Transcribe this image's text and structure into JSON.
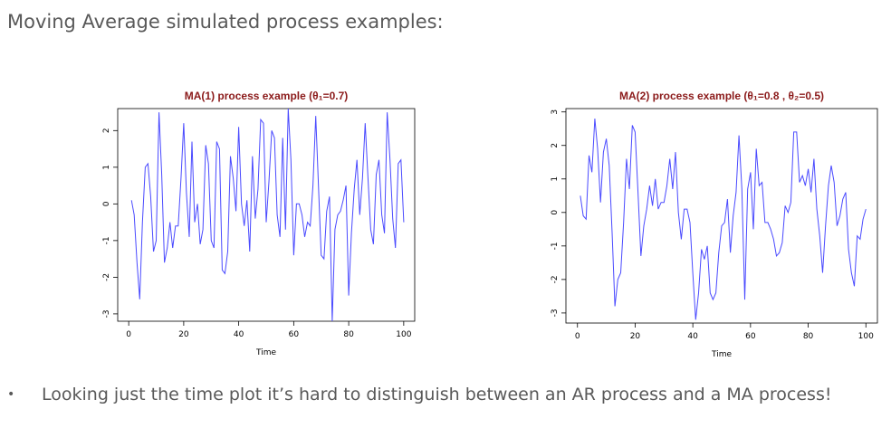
{
  "heading": "Moving Average simulated process examples:",
  "bullet": {
    "marker": "•",
    "text": "Looking just the time plot it’s hard to distinguish between an AR process and a MA process!"
  },
  "line_color": "#4a4aff",
  "title_color": "#8b1a1a",
  "chart_data": [
    {
      "type": "line",
      "title": "MA(1) process example (θ₁=0.7)",
      "xlabel": "Time",
      "ylabel": "",
      "xlim": [
        0,
        100
      ],
      "ylim": [
        -3.2,
        2.6
      ],
      "xticks": [
        0,
        20,
        40,
        60,
        80,
        100
      ],
      "yticks": [
        -3,
        -2,
        -1,
        0,
        1,
        2
      ],
      "series": [
        {
          "x": [
            1,
            2,
            3,
            4,
            5,
            6,
            7,
            8,
            9,
            10,
            11,
            12,
            13,
            14,
            15,
            16,
            17,
            18,
            19,
            20,
            21,
            22,
            23,
            24,
            25,
            26,
            27,
            28,
            29,
            30,
            31,
            32,
            33,
            34,
            35,
            36,
            37,
            38,
            39,
            40,
            41,
            42,
            43,
            44,
            45,
            46,
            47,
            48,
            49,
            50,
            51,
            52,
            53,
            54,
            55,
            56,
            57,
            58,
            59,
            60,
            61,
            62,
            63,
            64,
            65,
            66,
            67,
            68,
            69,
            70,
            71,
            72,
            73,
            74,
            75,
            76,
            77,
            78,
            79,
            80,
            81,
            82,
            83,
            84,
            85,
            86,
            87,
            88,
            89,
            90,
            91,
            92,
            93,
            94,
            95,
            96,
            97,
            98,
            99,
            100
          ],
          "y": [
            0.1,
            -0.3,
            -1.6,
            -2.6,
            -0.5,
            1.0,
            1.1,
            0.2,
            -1.3,
            -1.0,
            2.5,
            0.8,
            -1.6,
            -1.2,
            -0.5,
            -1.2,
            -0.6,
            -0.6,
            0.7,
            2.2,
            0.3,
            -0.9,
            1.7,
            -0.5,
            0.0,
            -1.1,
            -0.7,
            1.6,
            1.1,
            -1.0,
            -1.2,
            1.7,
            1.5,
            -1.8,
            -1.9,
            -1.3,
            1.3,
            0.7,
            -0.2,
            2.1,
            0.0,
            -0.6,
            0.1,
            -1.3,
            1.3,
            -0.4,
            0.4,
            2.3,
            2.2,
            -0.5,
            0.6,
            2.0,
            1.8,
            -0.3,
            -0.9,
            1.8,
            -0.7,
            2.6,
            1.2,
            -1.4,
            0.0,
            0.0,
            -0.3,
            -0.9,
            -0.5,
            -0.6,
            0.5,
            2.4,
            0.5,
            -1.4,
            -1.5,
            -0.2,
            0.2,
            -3.2,
            -0.7,
            -0.3,
            -0.2,
            0.1,
            0.5,
            -2.5,
            -0.8,
            0.4,
            1.2,
            -0.3,
            0.7,
            2.2,
            0.7,
            -0.7,
            -1.1,
            0.8,
            1.2,
            -0.3,
            -0.8,
            2.5,
            1.2,
            -0.4,
            -1.2,
            1.1,
            1.2,
            -0.5
          ]
        }
      ]
    },
    {
      "type": "line",
      "title": "MA(2) process example (θ₁=0.8 , θ₂=0.5)",
      "xlabel": "Time",
      "ylabel": "",
      "xlim": [
        0,
        100
      ],
      "ylim": [
        -3.3,
        3.1
      ],
      "xticks": [
        0,
        20,
        40,
        60,
        80,
        100
      ],
      "yticks": [
        -3,
        -2,
        -1,
        0,
        1,
        2,
        3
      ],
      "series": [
        {
          "x": [
            1,
            2,
            3,
            4,
            5,
            6,
            7,
            8,
            9,
            10,
            11,
            12,
            13,
            14,
            15,
            16,
            17,
            18,
            19,
            20,
            21,
            22,
            23,
            24,
            25,
            26,
            27,
            28,
            29,
            30,
            31,
            32,
            33,
            34,
            35,
            36,
            37,
            38,
            39,
            40,
            41,
            42,
            43,
            44,
            45,
            46,
            47,
            48,
            49,
            50,
            51,
            52,
            53,
            54,
            55,
            56,
            57,
            58,
            59,
            60,
            61,
            62,
            63,
            64,
            65,
            66,
            67,
            68,
            69,
            70,
            71,
            72,
            73,
            74,
            75,
            76,
            77,
            78,
            79,
            80,
            81,
            82,
            83,
            84,
            85,
            86,
            87,
            88,
            89,
            90,
            91,
            92,
            93,
            94,
            95,
            96,
            97,
            98,
            99,
            100
          ],
          "y": [
            0.5,
            -0.1,
            -0.2,
            1.7,
            1.2,
            2.8,
            1.9,
            0.3,
            1.8,
            2.2,
            1.4,
            -0.6,
            -2.8,
            -2.0,
            -1.8,
            -0.3,
            1.6,
            0.7,
            2.6,
            2.4,
            0.6,
            -1.3,
            -0.4,
            0.1,
            0.8,
            0.2,
            1.0,
            0.1,
            0.3,
            0.3,
            0.8,
            1.6,
            0.7,
            1.8,
            0.0,
            -0.8,
            0.1,
            0.1,
            -0.3,
            -1.8,
            -3.2,
            -2.4,
            -1.1,
            -1.4,
            -1.0,
            -2.4,
            -2.6,
            -2.4,
            -1.2,
            -0.4,
            -0.3,
            0.4,
            -1.2,
            -0.1,
            0.6,
            2.3,
            0.7,
            -2.6,
            0.7,
            1.2,
            -0.5,
            1.9,
            0.8,
            0.9,
            -0.3,
            -0.3,
            -0.5,
            -0.8,
            -1.3,
            -1.2,
            -0.9,
            0.2,
            0.0,
            0.3,
            2.4,
            2.4,
            0.9,
            1.1,
            0.8,
            1.3,
            0.6,
            1.6,
            0.1,
            -0.7,
            -1.8,
            -0.4,
            0.8,
            1.4,
            0.9,
            -0.4,
            -0.1,
            0.4,
            0.6,
            -1.1,
            -1.8,
            -2.2,
            -0.7,
            -0.8,
            -0.2,
            0.1
          ]
        }
      ]
    }
  ]
}
